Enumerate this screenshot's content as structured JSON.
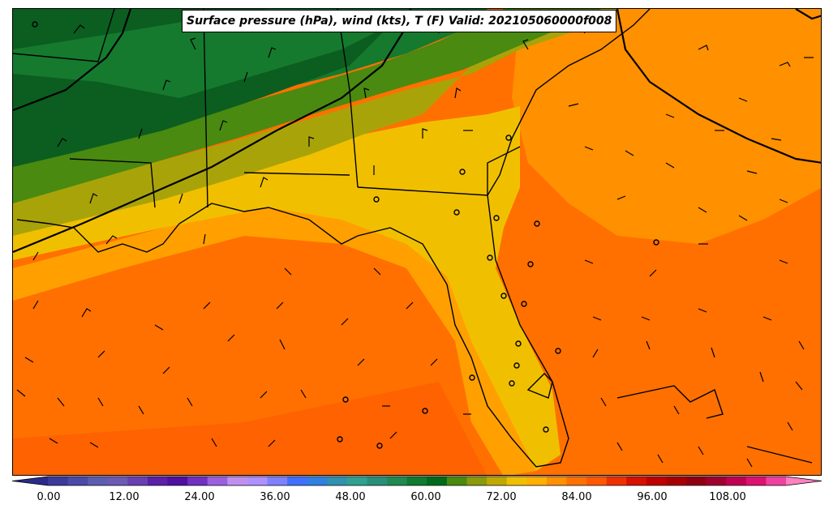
{
  "title": "Surface pressure (hPa), wind (kts), T (F) Valid: 202105060000f008",
  "colorbar": {
    "ticks": [
      "0.00",
      "12.00",
      "24.00",
      "36.00",
      "48.00",
      "60.00",
      "72.00",
      "84.00",
      "96.00",
      "108.00"
    ],
    "colors": [
      "#2a2a8a",
      "#3a3a9a",
      "#4a4aa8",
      "#5c5cb0",
      "#6c5ab4",
      "#6840b0",
      "#5a20a8",
      "#5010a0",
      "#7030c0",
      "#9a60e0",
      "#c090f0",
      "#b090ff",
      "#8080ff",
      "#4070ff",
      "#3080e0",
      "#3090b0",
      "#30a090",
      "#28907a",
      "#208a50",
      "#107a30",
      "#006a1a",
      "#4a8a10",
      "#8a9a0a",
      "#c0a800",
      "#f0c000",
      "#ffb000",
      "#ff9000",
      "#ff7000",
      "#ff5800",
      "#f03000",
      "#d81000",
      "#c00000",
      "#a80000",
      "#900010",
      "#a00030",
      "#c00050",
      "#e01070",
      "#f040a0",
      "#ff80c0"
    ]
  },
  "map": {
    "temperature_colors": {
      "dark_green": "#0b5e1f",
      "green": "#157a2e",
      "olive": "#4a8a10",
      "yellow_olive": "#a9a30a",
      "gold": "#f0c000",
      "amber": "#ffaa00",
      "orange": "#ff9100",
      "deep_orange": "#ff6f00"
    }
  }
}
